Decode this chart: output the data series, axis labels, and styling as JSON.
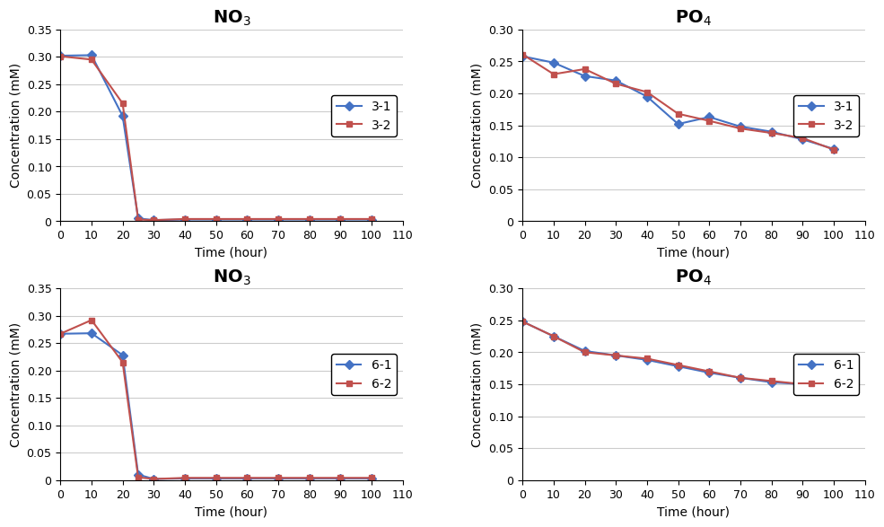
{
  "sample3_NO3": {
    "title": "NO$_3$",
    "xlabel": "Time (hour)",
    "ylabel": "Concentration (mM)",
    "ylim": [
      0,
      0.35
    ],
    "yticks": [
      0,
      0.05,
      0.1,
      0.15,
      0.2,
      0.25,
      0.3,
      0.35
    ],
    "xlim": [
      0,
      110
    ],
    "xticks": [
      0,
      10,
      20,
      30,
      40,
      50,
      60,
      70,
      80,
      90,
      100,
      110
    ],
    "series": [
      {
        "label": "3-1",
        "color": "#4472C4",
        "marker": "D",
        "x": [
          0,
          10,
          20,
          25,
          30,
          40,
          50,
          60,
          70,
          80,
          90,
          100
        ],
        "y": [
          0.302,
          0.303,
          0.192,
          0.005,
          0.002,
          0.003,
          0.003,
          0.003,
          0.003,
          0.003,
          0.003,
          0.003
        ]
      },
      {
        "label": "3-2",
        "color": "#C0504D",
        "marker": "s",
        "x": [
          0,
          10,
          20,
          25,
          30,
          40,
          50,
          60,
          70,
          80,
          90,
          100
        ],
        "y": [
          0.301,
          0.295,
          0.215,
          0.003,
          0.002,
          0.004,
          0.004,
          0.004,
          0.004,
          0.004,
          0.004,
          0.004
        ]
      }
    ]
  },
  "sample3_PO4": {
    "title": "PO$_4$",
    "xlabel": "Time (hour)",
    "ylabel": "Concentration (mM)",
    "ylim": [
      0,
      0.3
    ],
    "yticks": [
      0,
      0.05,
      0.1,
      0.15,
      0.2,
      0.25,
      0.3
    ],
    "xlim": [
      0,
      110
    ],
    "xticks": [
      0,
      10,
      20,
      30,
      40,
      50,
      60,
      70,
      80,
      90,
      100,
      110
    ],
    "series": [
      {
        "label": "3-1",
        "color": "#4472C4",
        "marker": "D",
        "x": [
          0,
          10,
          20,
          30,
          40,
          50,
          60,
          70,
          80,
          90,
          100
        ],
        "y": [
          0.258,
          0.248,
          0.227,
          0.22,
          0.195,
          0.152,
          0.163,
          0.148,
          0.14,
          0.128,
          0.113
        ]
      },
      {
        "label": "3-2",
        "color": "#C0504D",
        "marker": "s",
        "x": [
          0,
          10,
          20,
          30,
          40,
          50,
          60,
          70,
          80,
          90,
          100
        ],
        "y": [
          0.261,
          0.23,
          0.238,
          0.215,
          0.202,
          0.168,
          0.157,
          0.145,
          0.138,
          0.13,
          0.112
        ]
      }
    ]
  },
  "sample6_NO3": {
    "title": "NO$_3$",
    "xlabel": "Time (hour)",
    "ylabel": "Concentration (mM)",
    "ylim": [
      0,
      0.35
    ],
    "yticks": [
      0,
      0.05,
      0.1,
      0.15,
      0.2,
      0.25,
      0.3,
      0.35
    ],
    "xlim": [
      0,
      110
    ],
    "xticks": [
      0,
      10,
      20,
      30,
      40,
      50,
      60,
      70,
      80,
      90,
      100,
      110
    ],
    "series": [
      {
        "label": "6-1",
        "color": "#4472C4",
        "marker": "D",
        "x": [
          0,
          10,
          20,
          25,
          30,
          40,
          50,
          60,
          70,
          80,
          90,
          100
        ],
        "y": [
          0.267,
          0.268,
          0.228,
          0.01,
          0.002,
          0.003,
          0.003,
          0.003,
          0.003,
          0.003,
          0.003,
          0.003
        ]
      },
      {
        "label": "6-2",
        "color": "#C0504D",
        "marker": "s",
        "x": [
          0,
          10,
          20,
          25,
          30,
          40,
          50,
          60,
          70,
          80,
          90,
          100
        ],
        "y": [
          0.267,
          0.292,
          0.215,
          0.005,
          0.002,
          0.004,
          0.004,
          0.004,
          0.004,
          0.004,
          0.004,
          0.004
        ]
      }
    ]
  },
  "sample6_PO4": {
    "title": "PO$_4$",
    "xlabel": "Time (hour)",
    "ylabel": "Concentration (mM)",
    "ylim": [
      0,
      0.3
    ],
    "yticks": [
      0,
      0.05,
      0.1,
      0.15,
      0.2,
      0.25,
      0.3
    ],
    "xlim": [
      0,
      110
    ],
    "xticks": [
      0,
      10,
      20,
      30,
      40,
      50,
      60,
      70,
      80,
      90,
      100,
      110
    ],
    "series": [
      {
        "label": "6-1",
        "color": "#4472C4",
        "marker": "D",
        "x": [
          0,
          10,
          20,
          30,
          40,
          50,
          60,
          70,
          80,
          90,
          100
        ],
        "y": [
          0.248,
          0.225,
          0.202,
          0.195,
          0.188,
          0.178,
          0.168,
          0.16,
          0.153,
          0.15,
          0.148
        ]
      },
      {
        "label": "6-2",
        "color": "#C0504D",
        "marker": "s",
        "x": [
          0,
          10,
          20,
          30,
          40,
          50,
          60,
          70,
          80,
          90,
          100
        ],
        "y": [
          0.248,
          0.225,
          0.2,
          0.195,
          0.19,
          0.18,
          0.17,
          0.16,
          0.155,
          0.15,
          0.148
        ]
      }
    ]
  },
  "background_color": "#ffffff",
  "grid_color": "#cccccc",
  "title_fontsize": 14,
  "label_fontsize": 10,
  "tick_fontsize": 9,
  "legend_fontsize": 10,
  "line_width": 1.5,
  "marker_size": 5
}
